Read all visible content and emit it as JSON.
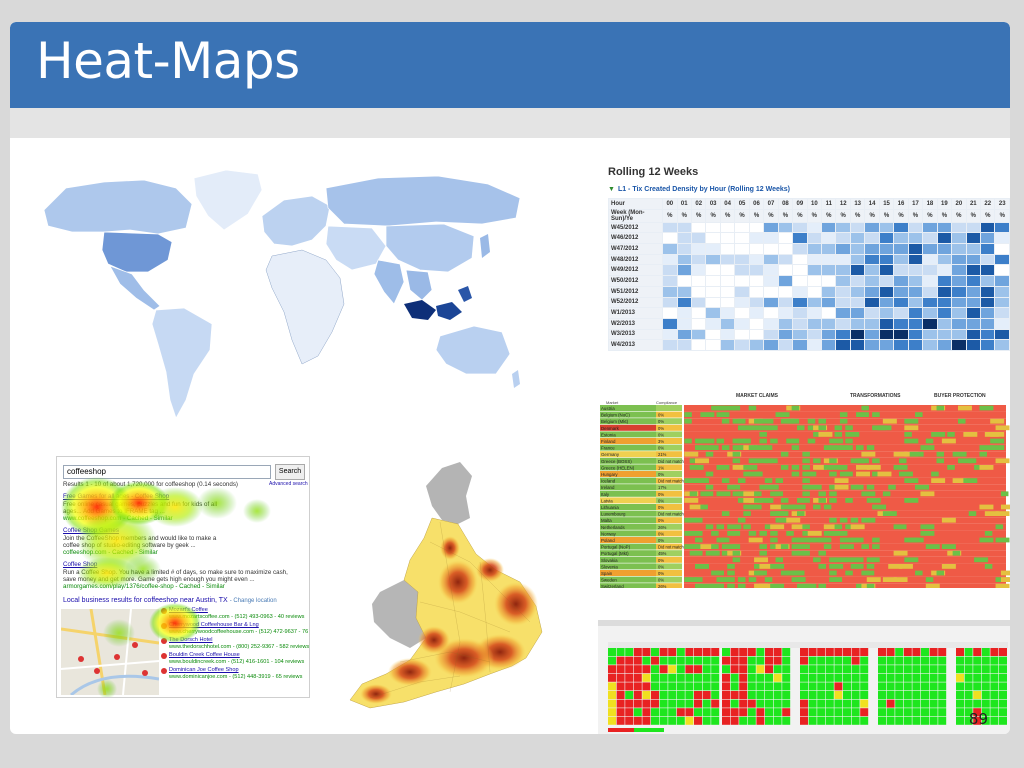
{
  "slide": {
    "title": "Heat-Maps",
    "page_number": "89"
  },
  "rolling": {
    "title": "Rolling 12 Weeks",
    "subtitle": "L1 - Tix Created Density by Hour (Rolling 12 Weeks)",
    "hour_label": "Hour",
    "week_label": "Week (Mon-Sun)/Ye",
    "hours": [
      "00",
      "01",
      "02",
      "03",
      "04",
      "05",
      "06",
      "07",
      "08",
      "09",
      "10",
      "11",
      "12",
      "13",
      "14",
      "15",
      "16",
      "17",
      "18",
      "19",
      "20",
      "21",
      "22",
      "23"
    ],
    "unit": "%",
    "weeks": [
      "W45/2012",
      "W46/2012",
      "W47/2012",
      "W48/2012",
      "W49/2012",
      "W50/2012",
      "W51/2012",
      "W52/2012",
      "W1/2013",
      "W2/2013",
      "W3/2013",
      "W4/2013"
    ],
    "colors": [
      "#ffffff",
      "#e4eefa",
      "#c9dcf3",
      "#9cc2ea",
      "#6fa4dd",
      "#3d7fc9",
      "#1c5aa6",
      "#0b2f66"
    ]
  },
  "compliance": {
    "header_market_claims": "MARKET CLAIMS",
    "header_transformations": "TRANSFORMATIONS",
    "header_buyer_protection": "BUYER PROTECTION",
    "col_market": "Market",
    "col_compliance": "Compliance",
    "markets": [
      {
        "name": "Austria",
        "value": ""
      },
      {
        "name": "Belgium (NoC)",
        "value": "0%"
      },
      {
        "name": "Belgium (Mkt)",
        "value": "0%"
      },
      {
        "name": "Denmark",
        "value": "0%"
      },
      {
        "name": "Estonia",
        "value": "0%"
      },
      {
        "name": "Finland",
        "value": "3%"
      },
      {
        "name": "France",
        "value": "0%"
      },
      {
        "name": "Germany",
        "value": "21%"
      },
      {
        "name": "Greece (BOSS)",
        "value": "Did not match"
      },
      {
        "name": "Greece (HELEN)",
        "value": "1%"
      },
      {
        "name": "Hungary",
        "value": "0%"
      },
      {
        "name": "Iceland",
        "value": "Did not match"
      },
      {
        "name": "Ireland",
        "value": "17%"
      },
      {
        "name": "Italy",
        "value": "0%"
      },
      {
        "name": "Latvia",
        "value": "0%"
      },
      {
        "name": "Lithuania",
        "value": "0%"
      },
      {
        "name": "Luxembourg",
        "value": "Did not match"
      },
      {
        "name": "Malta",
        "value": "0%"
      },
      {
        "name": "Netherlands",
        "value": "26%"
      },
      {
        "name": "Norway",
        "value": "0%"
      },
      {
        "name": "Poland",
        "value": "0%"
      },
      {
        "name": "Portugal (NoP)",
        "value": "Did not match"
      },
      {
        "name": "Portugal (Mkt)",
        "value": "45%"
      },
      {
        "name": "Slovakia",
        "value": "0%"
      },
      {
        "name": "Slovenia",
        "value": "0%"
      },
      {
        "name": "Spain",
        "value": "0%"
      },
      {
        "name": "Sweden",
        "value": "0%"
      },
      {
        "name": "Switzerland",
        "value": "26%"
      }
    ]
  },
  "search": {
    "query": "coffeeshop",
    "search_button": "Search",
    "advanced_search": "Advanced search",
    "results_info": "Results 1 - 10 of about 1,720,000 for coffeeshop (0.14 seconds)",
    "result1_title": "Free Games for all ages - Coffee Shop",
    "result1_line1": "Free online casual games, puzzles and fun for kids of all",
    "result1_line2": "ages... Add Games to IFRAME tag ...",
    "result1_url": "www.coffeeshop.com - Cached - Similar",
    "result2_title": "Coffee Shop Games",
    "result2_line1": "Join the CoffeeShop members and would like to make a",
    "result2_line2": "coffee shop of studio-editing software by geek ...",
    "result2_url": "coffeeshop.com - Cached - Similar",
    "result3_title": "Coffee Shop",
    "result3_line1": "Run a Coffee Shop. You have a limited # of days, so make sure to maximize cash,",
    "result3_line2": "save money and get more. Game gets high enough you might even ...",
    "result3_url": "armorgames.com/play/1376/coffee-shop - Cached - Similar",
    "local_title": "Local business results for coffeeshop near Austin, TX",
    "local_change": "- Change location",
    "local_results": [
      {
        "name": "Mozart's Coffee",
        "detail": "www.mozartscoffee.com - (512) 493-0963 - 40 reviews"
      },
      {
        "name": "Cherrywood Coffeehouse Bar & Lng",
        "detail": "www.cherrywoodcoffeehouse.com - (512) 472-9637 - 76 reviews"
      },
      {
        "name": "The Dorsch Hotel",
        "detail": "www.thedorschhotel.com - (800) 252-9367 - 582 reviews"
      },
      {
        "name": "Bouldin Creek Coffee House",
        "detail": "www.bouldincreek.com - (512) 416-1601 - 104 reviews"
      },
      {
        "name": "Dominican Joe Coffee Shop",
        "detail": "www.dominicanjoe.com - (512) 448-3919 - 65 reviews"
      }
    ]
  }
}
